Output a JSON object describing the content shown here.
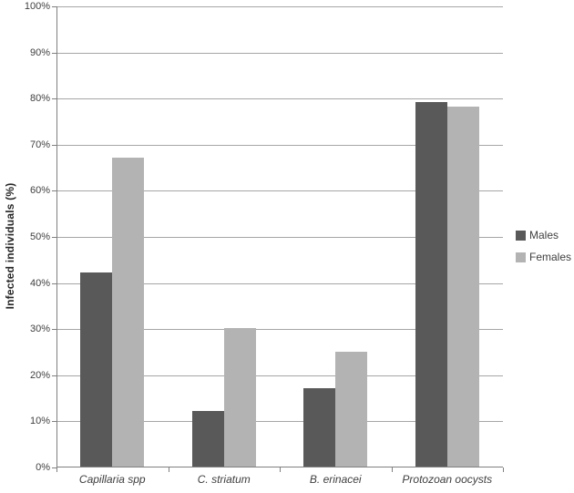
{
  "chart_data": {
    "type": "bar",
    "title": "",
    "categories": [
      "Capillaria spp",
      "C. striatum",
      "B. erinacei",
      "Protozoan oocysts"
    ],
    "series": [
      {
        "name": "Males",
        "color": "#595959",
        "values": [
          42,
          12,
          17,
          79
        ]
      },
      {
        "name": "Females",
        "color": "#B3B3B3",
        "values": [
          67,
          30,
          25,
          78
        ]
      }
    ],
    "xlabel": "",
    "ylabel": "Infected individuals (%)",
    "ylim": [
      0,
      100
    ],
    "ytick_step": 10,
    "ytick_labels": [
      "0%",
      "10%",
      "20%",
      "30%",
      "40%",
      "50%",
      "60%",
      "70%",
      "80%",
      "90%",
      "100%"
    ],
    "grid": "horizontal",
    "legend_position": "right",
    "colors": {
      "axis": "#808080",
      "gridline": "#A6A6A6",
      "label_text": "#3F3F3F",
      "background": "#FFFFFF"
    }
  }
}
